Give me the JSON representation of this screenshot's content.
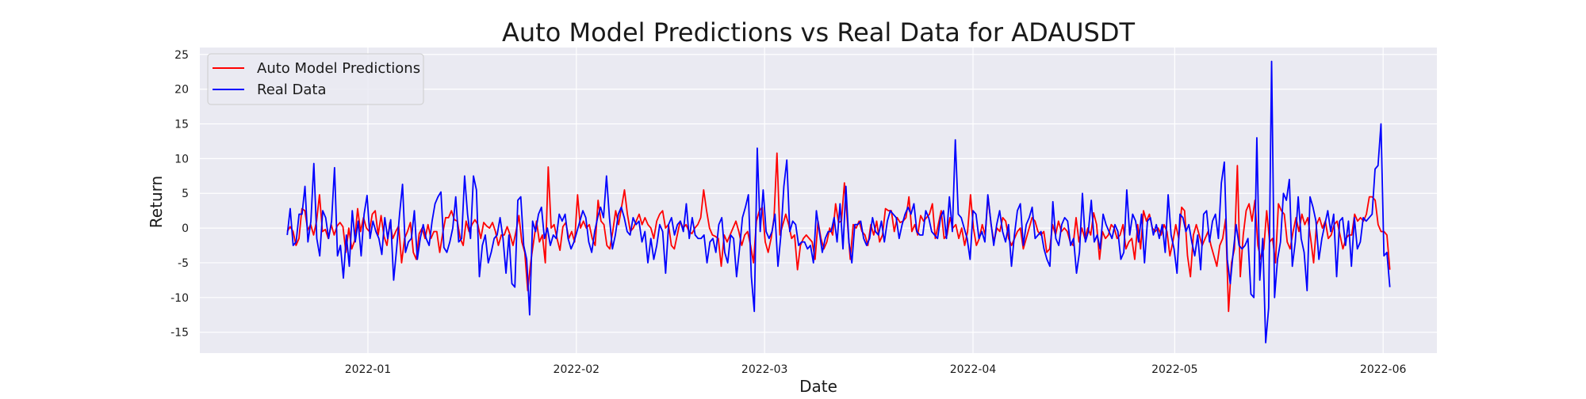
{
  "chart_data": {
    "type": "line",
    "title": "Auto Model Predictions vs Real Data for ADAUSDT",
    "xlabel": "Date",
    "ylabel": "Return",
    "x_start": "2021-12-20",
    "x_end": "2022-06-02",
    "xlim": [
      "2021-12-07",
      "2022-06-09"
    ],
    "ylim": [
      -18,
      26
    ],
    "x_ticks": [
      "2022-01",
      "2022-02",
      "2022-03",
      "2022-04",
      "2022-05",
      "2022-06"
    ],
    "y_ticks": [
      -15,
      -10,
      -5,
      0,
      5,
      10,
      15,
      20,
      25
    ],
    "grid": true,
    "legend": "top-left",
    "series": [
      {
        "name": "Auto Model Predictions",
        "color": "#ff0000",
        "values": [
          -0.5,
          0.2,
          -0.5,
          -2.5,
          -1.5,
          2.8,
          2.5,
          -0.3,
          0.5,
          -1.0,
          1.0,
          4.8,
          -0.5,
          -0.2,
          -1.5,
          0.5,
          -1.0,
          0.3,
          0.8,
          0.2,
          -3.5,
          0.0,
          -3.0,
          -1.8,
          2.8,
          -0.5,
          1.5,
          0.0,
          -0.5,
          2.0,
          2.5,
          -1.0,
          1.8,
          -1.2,
          -2.5,
          0.8,
          -1.5,
          -0.5,
          0.3,
          -5.0,
          -1.5,
          -0.5,
          0.8,
          -3.5,
          -4.5,
          -0.8,
          0.0,
          -1.5,
          0.5,
          -1.5,
          -0.5,
          -0.5,
          -3.5,
          -0.8,
          1.5,
          1.5,
          2.5,
          1.2,
          1.0,
          -1.5,
          -2.5,
          1.0,
          -0.5,
          0.5,
          1.2,
          0.5,
          -1.5,
          0.8,
          0.3,
          0.0,
          0.8,
          -0.5,
          -2.5,
          -1.0,
          -1.0,
          0.2,
          -1.0,
          -2.5,
          -0.5,
          1.8,
          -2.0,
          -3.5,
          -9.0,
          -5.0,
          -2.0,
          1.0,
          -2.0,
          -1.0,
          -5.0,
          8.8,
          0.0,
          0.5,
          -1.5,
          -3.2,
          0.2,
          0.8,
          -1.5,
          -0.5,
          -2.0,
          4.8,
          0.0,
          1.0,
          0.0,
          0.5,
          -1.5,
          -2.5,
          4.0,
          1.0,
          0.5,
          -2.5,
          -3.0,
          -0.5,
          2.5,
          0.5,
          3.0,
          5.5,
          2.0,
          -0.5,
          0.0,
          1.0,
          2.0,
          0.5,
          1.5,
          0.5,
          0.0,
          -1.5,
          1.0,
          2.0,
          2.5,
          0.0,
          0.5,
          -2.5,
          -3.0,
          -1.0,
          1.0,
          0.0,
          0.5,
          -0.5,
          -0.8,
          0.0,
          0.5,
          1.5,
          5.5,
          2.5,
          0.0,
          -1.0,
          -1.2,
          -1.5,
          -5.5,
          -1.0,
          -2.0,
          -1.0,
          0.0,
          1.0,
          -0.5,
          -2.5,
          -1.0,
          -0.5,
          -2.5,
          -5.0,
          1.0,
          2.5,
          3.0,
          -2.0,
          -3.5,
          -1.5,
          1.5,
          10.8,
          -1.0,
          0.5,
          2.0,
          0.5,
          -1.5,
          -1.0,
          -6.0,
          -2.5,
          -1.5,
          -1.0,
          -1.5,
          -2.0,
          -4.5,
          1.0,
          -1.5,
          -3.0,
          -2.0,
          0.0,
          -1.0,
          3.5,
          0.8,
          1.0,
          6.5,
          1.0,
          -4.5,
          0.5,
          0.0,
          1.0,
          -0.5,
          -1.0,
          -2.5,
          0.5,
          -1.0,
          1.0,
          -2.0,
          -1.0,
          2.8,
          2.5,
          2.5,
          -0.5,
          1.5,
          0.8,
          1.0,
          1.5,
          4.5,
          -0.5,
          0.5,
          -1.0,
          1.8,
          1.0,
          1.5,
          2.0,
          3.5,
          -1.5,
          0.5,
          2.5,
          -1.5,
          -1.0,
          1.5,
          0.0,
          0.5,
          -1.5,
          0.0,
          -2.5,
          -0.5,
          4.8,
          0.0,
          -2.5,
          -1.5,
          0.5,
          -1.0,
          4.5,
          0.5,
          -2.0,
          0.0,
          -0.5,
          1.5,
          1.0,
          -1.5,
          -2.5,
          -1.5,
          -0.5,
          0.0,
          -3.0,
          -1.5,
          0.0,
          1.5,
          1.0,
          -0.5,
          -1.0,
          -0.5,
          -3.5,
          -3.0,
          0.5,
          -1.0,
          1.0,
          -0.5,
          0.0,
          -0.5,
          -2.0,
          -2.5,
          1.5,
          -2.0,
          0.0,
          -1.5,
          0.0,
          -1.0,
          2.2,
          0.5,
          -4.5,
          -0.5,
          -1.5,
          -1.0,
          0.5,
          0.0,
          -1.5,
          -1.0,
          0.5,
          -3.0,
          -2.0,
          -1.5,
          -4.5,
          0.5,
          -3.0,
          2.5,
          1.0,
          2.0,
          0.0,
          -0.5,
          0.0,
          -1.0,
          0.5,
          -0.5,
          -4.0,
          -2.0,
          0.5,
          -1.5,
          3.0,
          2.5,
          -4.0,
          -7.0,
          -1.0,
          0.5,
          -1.0,
          -2.5,
          -1.5,
          -0.5,
          -2.5,
          -4.0,
          -5.5,
          -2.5,
          -1.5,
          1.3,
          -12.0,
          -5.0,
          -3.0,
          9.0,
          -7.0,
          -1.0,
          2.5,
          3.5,
          1.0,
          4.0,
          -2.5,
          -4.5,
          -3.0,
          2.5,
          -2.0,
          -1.5,
          -5.0,
          3.5,
          2.5,
          2.0,
          -2.0,
          -3.0,
          -0.5,
          1.5,
          -0.5,
          2.0,
          0.5,
          1.5,
          -1.5,
          -5.0,
          0.5,
          1.5,
          0.0,
          1.0,
          -1.5,
          -1.0,
          0.5,
          1.0,
          -1.0,
          -3.0,
          -1.5,
          -1.0,
          -1.0,
          2.0,
          1.0,
          1.5,
          1.0,
          2.0,
          4.5,
          4.5,
          4.0,
          0.5,
          -0.5,
          -0.5,
          -1.0,
          -6.0
        ]
      },
      {
        "name": "Real Data",
        "color": "#0000ff",
        "values": [
          -1.0,
          2.8,
          -2.5,
          -2.0,
          2.0,
          2.0,
          6.0,
          -2.0,
          1.0,
          9.3,
          -1.5,
          -4.0,
          2.5,
          1.5,
          -1.5,
          1.0,
          8.7,
          -4.0,
          -2.5,
          -7.2,
          -1.0,
          -5.5,
          2.5,
          -2.0,
          1.0,
          -4.0,
          2.0,
          4.7,
          -1.5,
          1.0,
          -0.5,
          -1.5,
          -3.8,
          1.5,
          -1.5,
          1.2,
          -7.5,
          -3.0,
          2.0,
          6.3,
          -3.5,
          -2.0,
          -1.5,
          2.5,
          -4.5,
          -1.5,
          0.5,
          -1.5,
          -2.5,
          1.0,
          3.5,
          4.5,
          5.2,
          -2.8,
          -3.5,
          -2.0,
          0.0,
          4.5,
          -2.0,
          -1.5,
          7.5,
          2.0,
          -1.5,
          7.5,
          5.5,
          -7.0,
          -2.5,
          -1.0,
          -5.0,
          -3.5,
          -1.5,
          -1.0,
          1.5,
          -1.5,
          -6.5,
          -1.0,
          -8.0,
          -8.5,
          4.0,
          4.5,
          -2.5,
          -4.5,
          -12.5,
          1.0,
          -0.5,
          2.0,
          3.0,
          -1.5,
          0.0,
          -2.5,
          -1.0,
          -1.5,
          2.0,
          1.0,
          2.0,
          -1.5,
          -3.0,
          -2.0,
          -0.5,
          1.0,
          2.5,
          1.5,
          -2.0,
          -3.5,
          -0.5,
          1.5,
          3.0,
          1.5,
          7.5,
          1.5,
          -3.0,
          -1.0,
          2.0,
          3.0,
          1.5,
          -0.5,
          -1.0,
          1.5,
          0.5,
          1.0,
          -2.0,
          -0.5,
          -5.0,
          -1.5,
          -4.5,
          -2.5,
          0.5,
          -0.5,
          -6.5,
          0.5,
          1.5,
          -1.0,
          0.5,
          1.0,
          -0.5,
          3.5,
          -1.5,
          1.5,
          -1.0,
          -1.5,
          -1.5,
          -1.0,
          -5.0,
          -2.0,
          -1.5,
          -3.5,
          0.5,
          1.5,
          -3.5,
          -5.0,
          -1.0,
          -1.5,
          -7.0,
          -3.0,
          1.5,
          3.0,
          4.8,
          -7.0,
          -12.0,
          11.5,
          -0.5,
          5.5,
          -0.5,
          -1.5,
          -0.5,
          2.0,
          -5.5,
          -1.0,
          6.0,
          9.8,
          -0.5,
          1.0,
          0.5,
          -2.5,
          -2.0,
          -2.0,
          -3.0,
          -2.5,
          -5.0,
          2.5,
          -0.5,
          -3.5,
          -1.5,
          -0.5,
          -0.5,
          1.5,
          -2.0,
          3.5,
          -3.0,
          6.0,
          -2.0,
          -5.0,
          0.5,
          0.5,
          1.0,
          -1.5,
          -2.5,
          -1.5,
          1.5,
          -0.5,
          -1.0,
          1.0,
          -2.0,
          1.0,
          2.5,
          2.0,
          1.5,
          -1.5,
          0.5,
          2.0,
          3.0,
          2.0,
          3.5,
          -0.5,
          -1.0,
          -1.0,
          2.5,
          1.5,
          -0.5,
          -1.0,
          -1.5,
          1.5,
          2.5,
          -1.5,
          4.5,
          -0.5,
          12.7,
          2.0,
          1.5,
          0.0,
          -1.5,
          -4.5,
          2.5,
          2.0,
          -1.5,
          -0.5,
          -2.0,
          4.8,
          1.0,
          -2.5,
          0.5,
          2.5,
          -0.5,
          -2.0,
          0.5,
          -5.5,
          -1.0,
          2.5,
          3.5,
          -2.5,
          0.5,
          1.5,
          3.0,
          -1.5,
          -1.0,
          -0.5,
          -3.0,
          -4.5,
          -5.5,
          3.8,
          -1.5,
          -2.5,
          0.5,
          1.5,
          1.0,
          -2.5,
          -1.5,
          -6.5,
          -3.5,
          5.0,
          -2.0,
          -0.5,
          4.0,
          -2.0,
          -1.0,
          -3.0,
          2.0,
          0.5,
          -0.5,
          -1.5,
          0.5,
          -0.5,
          -4.5,
          -3.5,
          5.5,
          -1.0,
          2.0,
          1.0,
          -2.0,
          2.0,
          -5.0,
          1.0,
          1.5,
          -1.0,
          0.5,
          -1.5,
          0.5,
          -3.5,
          4.8,
          -1.0,
          -3.0,
          -6.5,
          2.0,
          1.5,
          -0.5,
          0.5,
          -2.0,
          -4.0,
          -1.0,
          -6.0,
          2.0,
          2.5,
          -2.0,
          1.0,
          2.0,
          -1.5,
          6.5,
          9.5,
          -4.5,
          -8.0,
          -3.5,
          0.5,
          -2.5,
          -3.0,
          -2.5,
          -1.5,
          -9.5,
          -10.0,
          13.0,
          -7.5,
          -1.5,
          -16.5,
          -11.5,
          24.0,
          -10.0,
          -4.5,
          -2.0,
          5.0,
          4.0,
          7.0,
          -5.5,
          -2.0,
          4.5,
          -1.5,
          -3.5,
          -9.0,
          4.5,
          3.0,
          1.0,
          -4.5,
          -1.5,
          0.5,
          2.5,
          -0.5,
          2.0,
          -7.0,
          1.0,
          1.5,
          -2.5,
          1.0,
          -5.5,
          1.5,
          -3.0,
          -2.0,
          1.5,
          1.0,
          1.5,
          2.0,
          8.5,
          9.0,
          15.0,
          -4.0,
          -3.5,
          -8.5
        ]
      }
    ]
  }
}
